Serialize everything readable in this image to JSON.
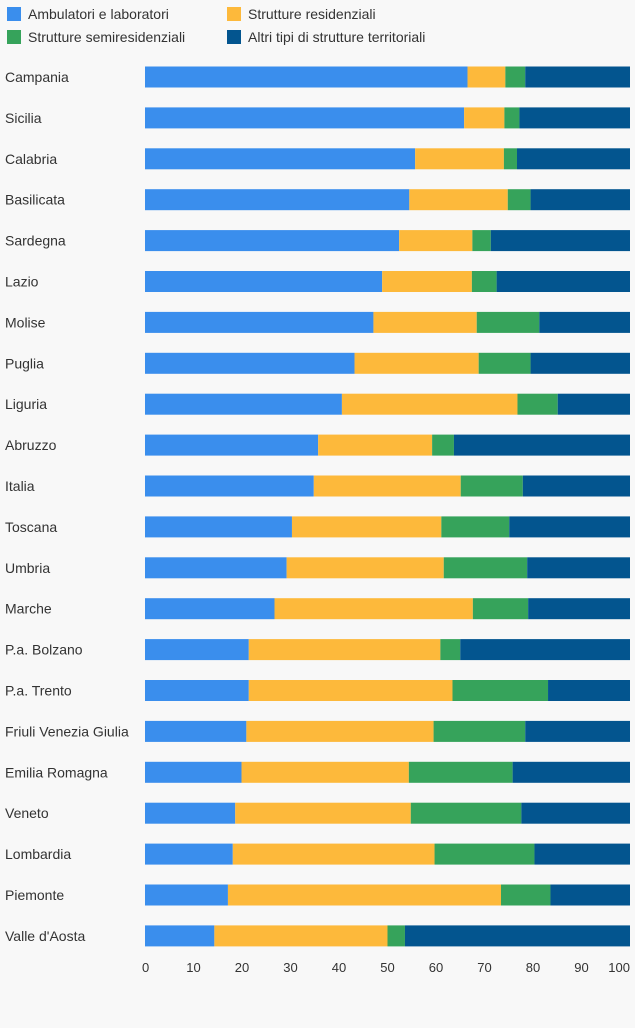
{
  "chart_data": {
    "type": "bar",
    "orientation": "horizontal",
    "stacked": true,
    "legend_position": "top-left",
    "grid": false,
    "xlim": [
      0,
      100
    ],
    "x_ticks": [
      0,
      10,
      20,
      30,
      40,
      50,
      60,
      70,
      80,
      90,
      100
    ],
    "categories": [
      "Campania",
      "Sicilia",
      "Calabria",
      "Basilicata",
      "Sardegna",
      "Lazio",
      "Molise",
      "Puglia",
      "Liguria",
      "Abruzzo",
      "Italia",
      "Toscana",
      "Umbria",
      "Marche",
      "P.a. Bolzano",
      "P.a. Trento",
      "Friuli Venezia Giulia",
      "Emilia Romagna",
      "Veneto",
      "Lombardia",
      "Piemonte",
      "Valle d'Aosta"
    ],
    "series": [
      {
        "name": "Ambulatori e laboratori",
        "color": "#3a8eed",
        "values": [
          66.5,
          65.8,
          55.7,
          54.5,
          52.4,
          48.9,
          47.1,
          43.2,
          40.6,
          35.7,
          34.8,
          30.3,
          29.2,
          26.7,
          21.4,
          21.4,
          20.9,
          19.9,
          18.6,
          18.1,
          17.1,
          14.3
        ]
      },
      {
        "name": "Strutture residenziali",
        "color": "#fdb93b",
        "values": [
          7.8,
          8.3,
          18.3,
          20.3,
          15.1,
          18.5,
          21.3,
          25.6,
          36.2,
          23.5,
          30.3,
          30.8,
          32.4,
          40.9,
          39.5,
          42.0,
          38.6,
          34.5,
          36.2,
          41.6,
          56.3,
          35.7
        ]
      },
      {
        "name": "Strutture semiresidenziali",
        "color": "#36a35b",
        "values": [
          4.1,
          3.1,
          2.7,
          4.7,
          3.8,
          5.1,
          12.9,
          10.7,
          8.3,
          4.5,
          12.8,
          14.0,
          17.2,
          11.4,
          4.1,
          19.7,
          18.9,
          21.4,
          22.8,
          20.6,
          10.2,
          3.6
        ]
      },
      {
        "name": "Altri tipi di strutture territoriali",
        "color": "#03558f",
        "values": [
          21.6,
          22.8,
          23.3,
          20.5,
          28.7,
          27.5,
          18.7,
          20.5,
          14.9,
          36.3,
          22.1,
          24.9,
          21.2,
          21.0,
          35.0,
          16.9,
          21.6,
          24.2,
          22.4,
          19.7,
          16.4,
          46.4
        ]
      }
    ]
  }
}
